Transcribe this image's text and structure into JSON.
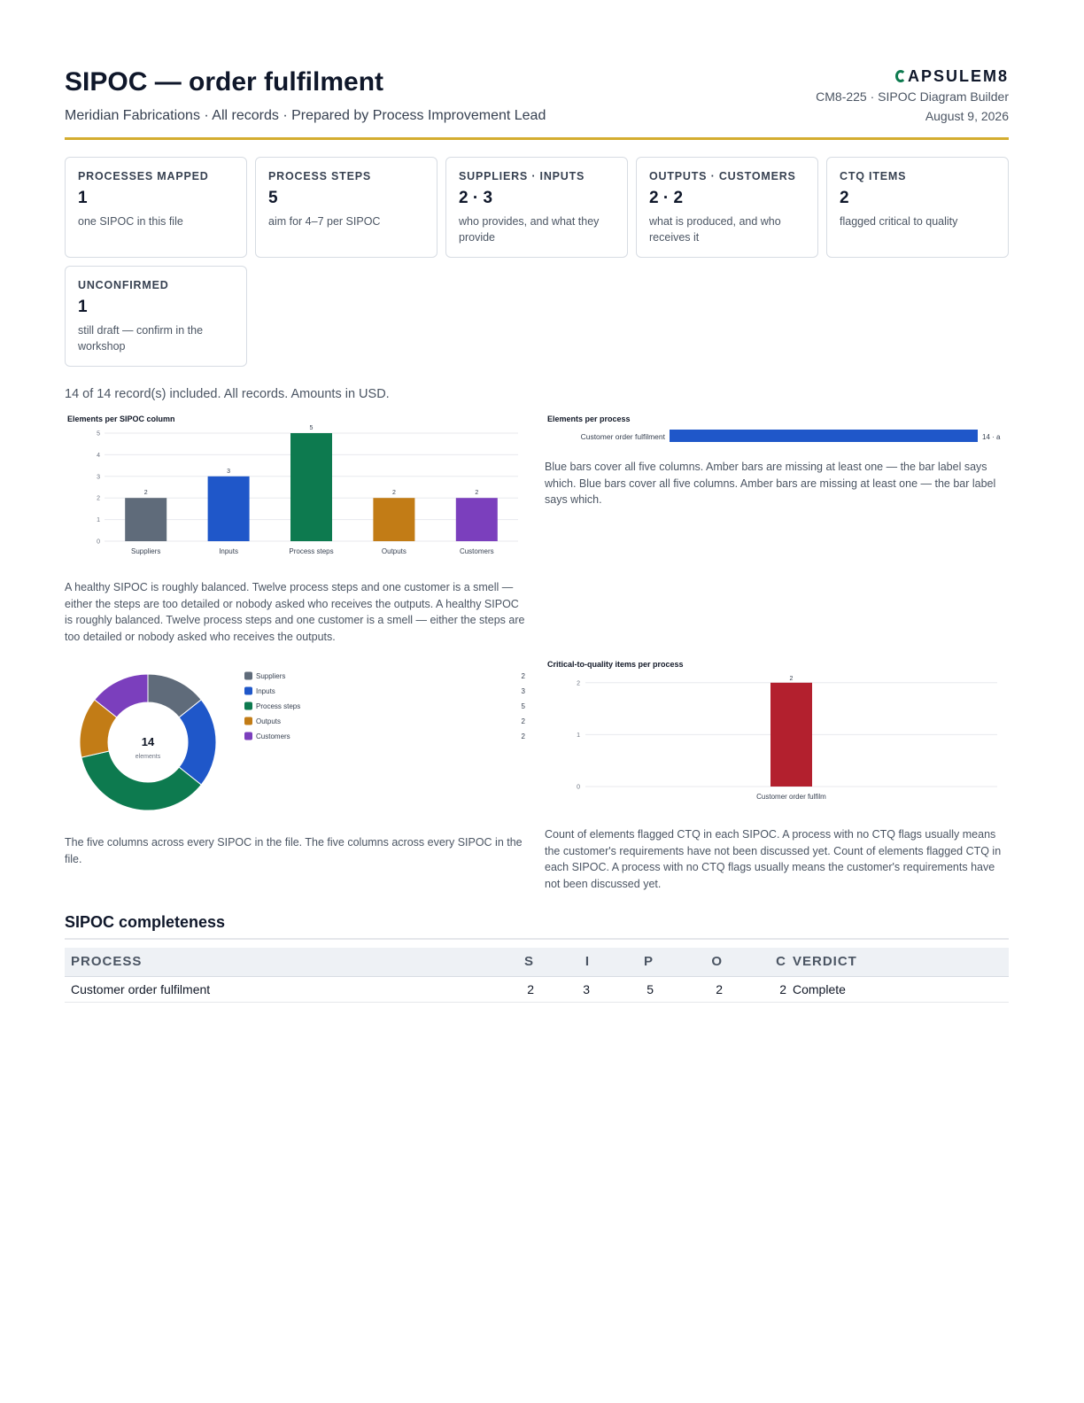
{
  "header": {
    "title": "SIPOC — order fulfilment",
    "subtitle": "Meridian Fabrications · All records · Prepared by Process Improvement Lead",
    "brand": "APSULEM8",
    "doc_ref": "CM8-225 · SIPOC Diagram Builder",
    "date": "August 9, 2026"
  },
  "kpis": [
    {
      "label": "Processes mapped",
      "value": "1",
      "note": "one SIPOC in this file"
    },
    {
      "label": "Process steps",
      "value": "5",
      "note": "aim for 4–7 per SIPOC"
    },
    {
      "label": "Suppliers · Inputs",
      "value": "2 · 3",
      "note": "who provides, and what they provide"
    },
    {
      "label": "Outputs · Customers",
      "value": "2 · 2",
      "note": "what is produced, and who receives it"
    },
    {
      "label": "CTQ items",
      "value": "2",
      "note": "flagged critical to quality"
    },
    {
      "label": "Unconfirmed",
      "value": "1",
      "note": "still draft — confirm in the workshop"
    }
  ],
  "included_text": "14 of 14 record(s) included. All records. Amounts in USD.",
  "captions": {
    "column_chart": "A healthy SIPOC is roughly balanced. Twelve process steps and one customer is a smell — either the steps are too detailed or nobody asked who receives the outputs. A healthy SIPOC is roughly balanced. Twelve process steps and one customer is a smell — either the steps are too detailed or nobody asked who receives the outputs.",
    "process_chart": "Blue bars cover all five columns. Amber bars are missing at least one — the bar label says which. Blue bars cover all five columns. Amber bars are missing at least one — the bar label says which.",
    "donut_chart": "The five columns across every SIPOC in the file. The five columns across every SIPOC in the file.",
    "ctq_chart": "Count of elements flagged CTQ in each SIPOC. A process with no CTQ flags usually means the customer's requirements have not been discussed yet. Count of elements flagged CTQ in each SIPOC. A process with no CTQ flags usually means the customer's requirements have not been discussed yet."
  },
  "chart_data": [
    {
      "type": "bar",
      "title": "Elements per SIPOC column",
      "categories": [
        "Suppliers",
        "Inputs",
        "Process steps",
        "Outputs",
        "Customers"
      ],
      "values": [
        2,
        3,
        5,
        2,
        2
      ],
      "colors": [
        "#5f6b7a",
        "#1f57c9",
        "#0d7a4f",
        "#c27c16",
        "#7b3fbd"
      ],
      "ylim": [
        0,
        5
      ],
      "yticks": [
        0,
        1,
        2,
        3,
        4,
        5
      ],
      "grid": true
    },
    {
      "type": "bar",
      "orientation": "horizontal",
      "title": "Elements per process",
      "categories": [
        "Customer order fulfilment"
      ],
      "values": [
        14
      ],
      "value_labels": [
        "14 · a"
      ],
      "colors": [
        "#1f57c9"
      ]
    },
    {
      "type": "pie",
      "donut": true,
      "center_value": "14",
      "center_label": "elements",
      "labels": [
        "Suppliers",
        "Inputs",
        "Process steps",
        "Outputs",
        "Customers"
      ],
      "values": [
        2,
        3,
        5,
        2,
        2
      ],
      "colors": [
        "#5f6b7a",
        "#1f57c9",
        "#0d7a4f",
        "#c27c16",
        "#7b3fbd"
      ],
      "legend": "right"
    },
    {
      "type": "bar",
      "title": "Critical-to-quality items per process",
      "categories": [
        "Customer order fulfilm"
      ],
      "values": [
        2
      ],
      "colors": [
        "#b3202e"
      ],
      "ylim": [
        0,
        2.15
      ],
      "yticks": [
        0,
        1,
        2
      ],
      "grid": true
    }
  ],
  "table": {
    "title": "SIPOC completeness",
    "columns": [
      "Process",
      "S",
      "I",
      "P",
      "O",
      "C",
      "Verdict"
    ],
    "rows": [
      [
        "Customer order fulfilment",
        "2",
        "3",
        "5",
        "2",
        "2",
        "Complete"
      ]
    ]
  }
}
